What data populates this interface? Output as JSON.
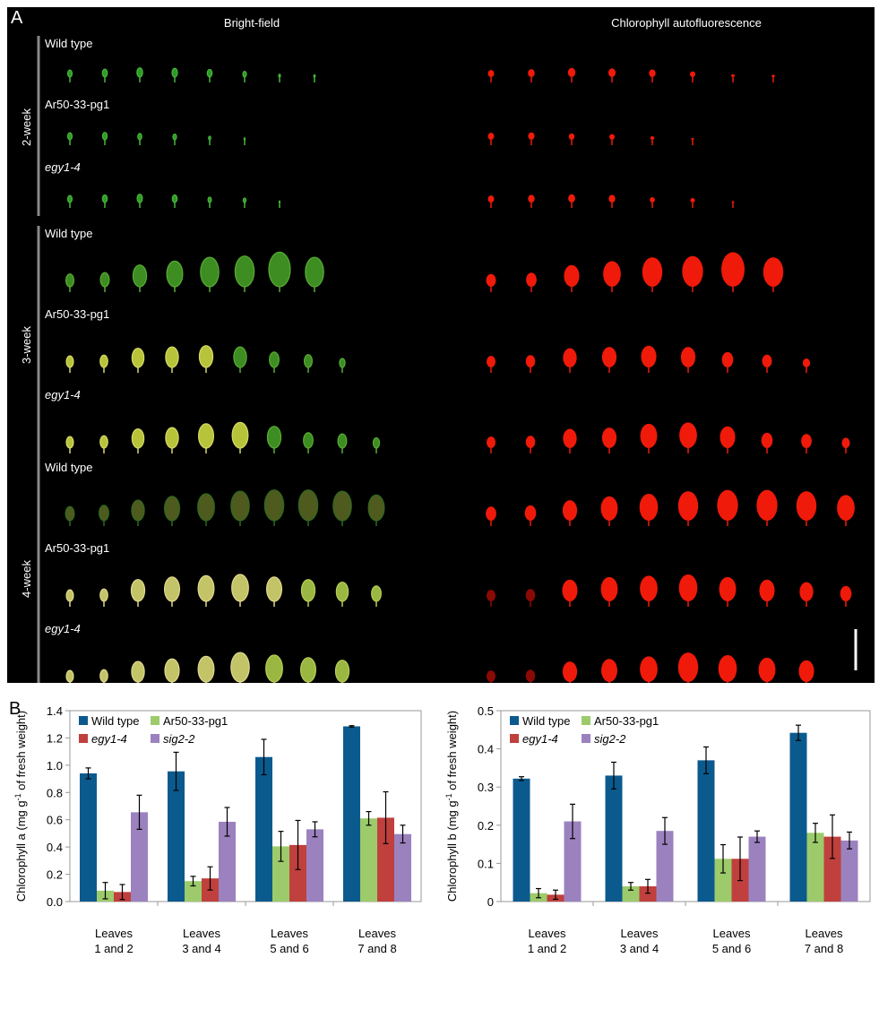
{
  "panel_a": {
    "letter": "A",
    "headers": [
      "Bright-field",
      "Chlorophyll autofluorescence"
    ],
    "groups": [
      {
        "label": "2-week",
        "rows": [
          {
            "genotype": "Wild type",
            "italic": false,
            "leaves": [
              0.55,
              0.62,
              0.72,
              0.68,
              0.6,
              0.45,
              0.22,
              0.18
            ]
          },
          {
            "genotype": "Ar50-33-pg1",
            "italic": false,
            "leaves": [
              0.55,
              0.58,
              0.5,
              0.45,
              0.28,
              0.15
            ]
          },
          {
            "genotype": "egy1-4",
            "italic": true,
            "leaves": [
              0.55,
              0.6,
              0.65,
              0.6,
              0.42,
              0.35,
              0.12
            ]
          }
        ]
      },
      {
        "label": "3-week",
        "rows": [
          {
            "genotype": "Wild type",
            "italic": false,
            "leaves": [
              0.5,
              0.55,
              0.85,
              1.0,
              1.15,
              1.2,
              1.35,
              1.15
            ]
          },
          {
            "genotype": "Ar50-33-pg1",
            "italic": false,
            "leaves": [
              0.45,
              0.48,
              0.75,
              0.8,
              0.85,
              0.8,
              0.6,
              0.5,
              0.35
            ]
          },
          {
            "genotype": "egy1-4",
            "italic": true,
            "leaves": [
              0.45,
              0.48,
              0.75,
              0.8,
              0.95,
              1.0,
              0.85,
              0.6,
              0.55,
              0.4
            ]
          }
        ]
      },
      {
        "label": "4-week",
        "rows": [
          {
            "genotype": "Wild type",
            "italic": false,
            "leaves": [
              0.55,
              0.6,
              0.8,
              0.95,
              1.05,
              1.15,
              1.2,
              1.2,
              1.15,
              1.0
            ]
          },
          {
            "genotype": "Ar50-33-pg1",
            "italic": false,
            "leaves": [
              0.45,
              0.48,
              0.85,
              0.95,
              1.0,
              1.05,
              0.95,
              0.85,
              0.75,
              0.6
            ]
          },
          {
            "genotype": "egy1-4",
            "italic": true,
            "leaves": [
              0.45,
              0.48,
              0.8,
              0.9,
              1.0,
              1.15,
              1.05,
              0.95,
              0.85
            ]
          }
        ]
      }
    ]
  },
  "panel_b_letter": "B",
  "chart_data": [
    {
      "type": "bar",
      "categories": [
        [
          "Leaves",
          "1 and 2"
        ],
        [
          "Leaves",
          "3 and 4"
        ],
        [
          "Leaves",
          "5 and 6"
        ],
        [
          "Leaves",
          "7 and 8"
        ]
      ],
      "ylabel": "Chlorophyll a (mg g-1 of fresh weight)",
      "ylabel_parts": [
        "Chlorophyll a (mg g",
        "-1",
        " of fresh weight)"
      ],
      "ylim": [
        0,
        1.4
      ],
      "yticks": [
        0.0,
        0.2,
        0.4,
        0.6,
        0.8,
        1.0,
        1.2,
        1.4
      ],
      "tick_decimals": 1,
      "series": [
        {
          "name": "Wild type",
          "italic": false,
          "color": "#0b5a8e",
          "values": [
            0.94,
            0.955,
            1.06,
            1.285
          ],
          "errors": [
            0.04,
            0.14,
            0.13,
            0.005
          ]
        },
        {
          "name": "Ar50-33-pg1",
          "italic": false,
          "color": "#9dcb6b",
          "values": [
            0.08,
            0.15,
            0.405,
            0.61
          ],
          "errors": [
            0.06,
            0.035,
            0.11,
            0.05
          ]
        },
        {
          "name": "egy1-4",
          "italic": true,
          "color": "#c0403d",
          "values": [
            0.07,
            0.17,
            0.415,
            0.615
          ],
          "errors": [
            0.055,
            0.085,
            0.18,
            0.19
          ]
        },
        {
          "name": "sig2-2",
          "italic": true,
          "color": "#9b82bf",
          "values": [
            0.655,
            0.585,
            0.53,
            0.495
          ],
          "errors": [
            0.125,
            0.105,
            0.055,
            0.065
          ]
        }
      ]
    },
    {
      "type": "bar",
      "categories": [
        [
          "Leaves",
          "1 and 2"
        ],
        [
          "Leaves",
          "3 and 4"
        ],
        [
          "Leaves",
          "5 and 6"
        ],
        [
          "Leaves",
          "7 and 8"
        ]
      ],
      "ylabel": "Chlorophyll b (mg g-1 of fresh weight)",
      "ylabel_parts": [
        "Chlorophyll b (mg g",
        "-1",
        " of fresh weight)"
      ],
      "ylim": [
        0,
        0.5
      ],
      "yticks": [
        0,
        0.1,
        0.2,
        0.3,
        0.4,
        0.5
      ],
      "tick_decimals": -1,
      "series": [
        {
          "name": "Wild type",
          "italic": false,
          "color": "#0b5a8e",
          "values": [
            0.322,
            0.33,
            0.37,
            0.442
          ],
          "errors": [
            0.005,
            0.035,
            0.035,
            0.02
          ]
        },
        {
          "name": "Ar50-33-pg1",
          "italic": false,
          "color": "#9dcb6b",
          "values": [
            0.022,
            0.04,
            0.112,
            0.18
          ],
          "errors": [
            0.012,
            0.01,
            0.037,
            0.025
          ]
        },
        {
          "name": "egy1-4",
          "italic": true,
          "color": "#c0403d",
          "values": [
            0.018,
            0.04,
            0.112,
            0.17
          ],
          "errors": [
            0.012,
            0.018,
            0.057,
            0.057
          ]
        },
        {
          "name": "sig2-2",
          "italic": true,
          "color": "#9b82bf",
          "values": [
            0.21,
            0.185,
            0.17,
            0.16
          ],
          "errors": [
            0.045,
            0.035,
            0.015,
            0.022
          ]
        }
      ]
    }
  ]
}
